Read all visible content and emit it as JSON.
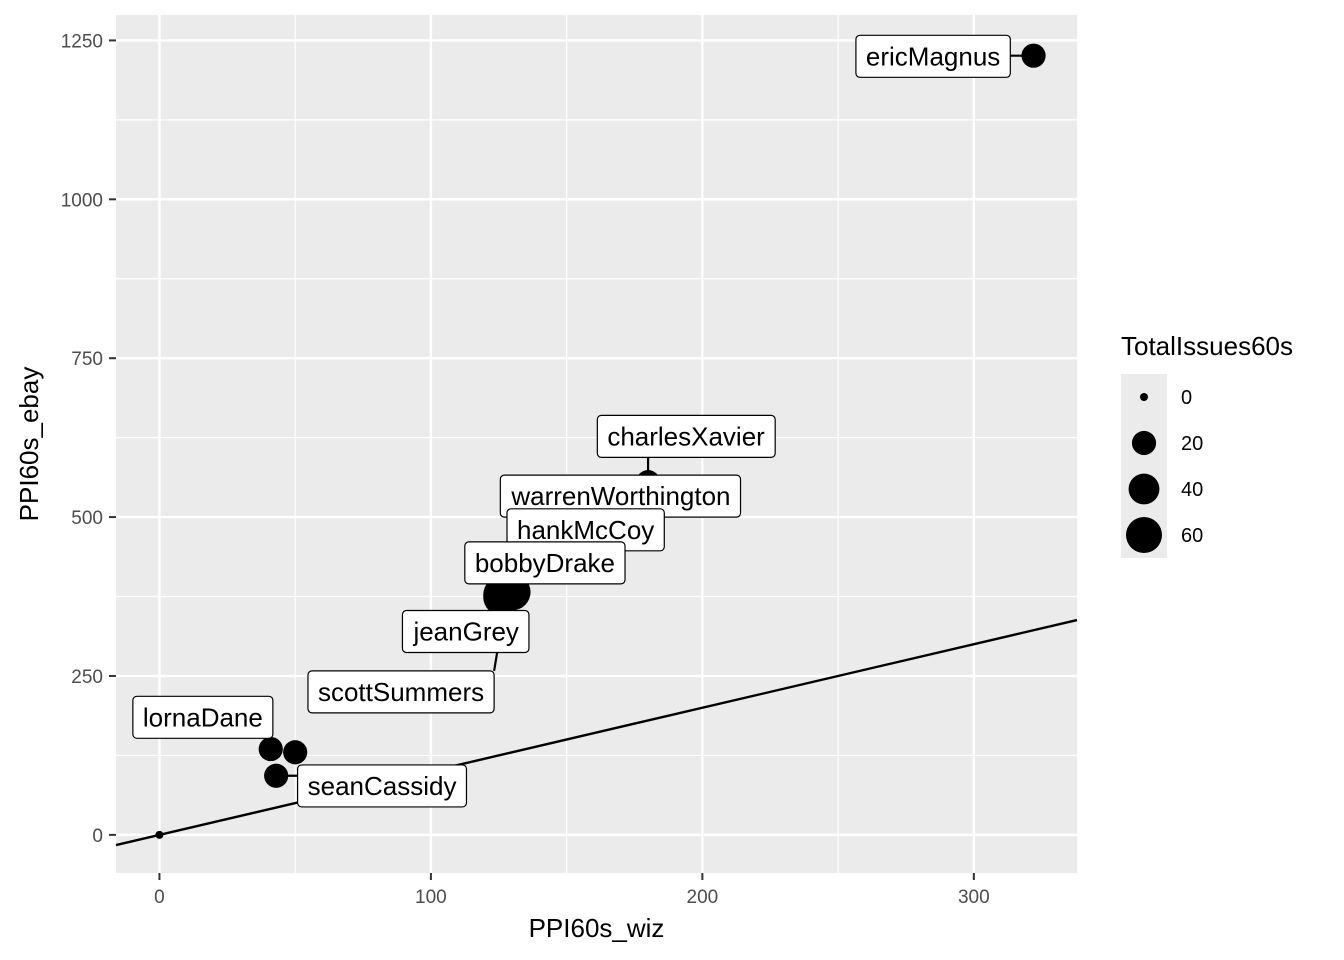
{
  "chart_data": {
    "type": "scatter",
    "title": "",
    "xlabel": "PPI60s_wiz",
    "ylabel": "PPI60s_ebay",
    "xlim": [
      -16,
      338
    ],
    "ylim": [
      -60,
      1290
    ],
    "x_ticks": [
      0,
      100,
      200,
      300
    ],
    "y_ticks": [
      0,
      250,
      500,
      750,
      1000,
      1250
    ],
    "grid": true,
    "legend_placement": "right",
    "legend": {
      "title": "TotalIssues60s",
      "sizes": [
        0,
        20,
        40,
        60
      ]
    },
    "reference_line": {
      "slope": 1,
      "intercept": 0
    },
    "points": [
      {
        "label": "ericMagnus",
        "x": 322,
        "y": 1226,
        "size": 20
      },
      {
        "label": "charlesXavier",
        "x": 180,
        "y": 555,
        "size": 20
      },
      {
        "label": "warrenWorthington",
        "x": 178,
        "y": 500,
        "size": 20
      },
      {
        "label": "hankMcCoy",
        "x": 126,
        "y": 378,
        "size": 62
      },
      {
        "label": "bobbyDrake",
        "x": 130,
        "y": 382,
        "size": 62
      },
      {
        "label": "jeanGrey",
        "x": 126,
        "y": 374,
        "size": 62
      },
      {
        "label": "scottSummers",
        "x": 128,
        "y": 380,
        "size": 62
      },
      {
        "label": "lornaDane",
        "x": 41,
        "y": 135,
        "size": 20
      },
      {
        "label": "seanCassidy",
        "x": 43,
        "y": 93,
        "size": 20
      },
      {
        "label": "",
        "x": 50,
        "y": 130,
        "size": 20
      },
      {
        "label": "",
        "x": 0,
        "y": 0,
        "size": 0
      }
    ],
    "label_positions": [
      {
        "label": "ericMagnus",
        "x": 285,
        "y": 1225
      },
      {
        "label": "charlesXavier",
        "x": 194,
        "y": 627
      },
      {
        "label": "warrenWorthington",
        "x": 170,
        "y": 533
      },
      {
        "label": "hankMcCoy",
        "x": 157,
        "y": 480
      },
      {
        "label": "bobbyDrake",
        "x": 142,
        "y": 428
      },
      {
        "label": "jeanGrey",
        "x": 113,
        "y": 320
      },
      {
        "label": "scottSummers",
        "x": 89,
        "y": 225
      },
      {
        "label": "lornaDane",
        "x": 16,
        "y": 185
      },
      {
        "label": "seanCassidy",
        "x": 82,
        "y": 77
      }
    ]
  }
}
